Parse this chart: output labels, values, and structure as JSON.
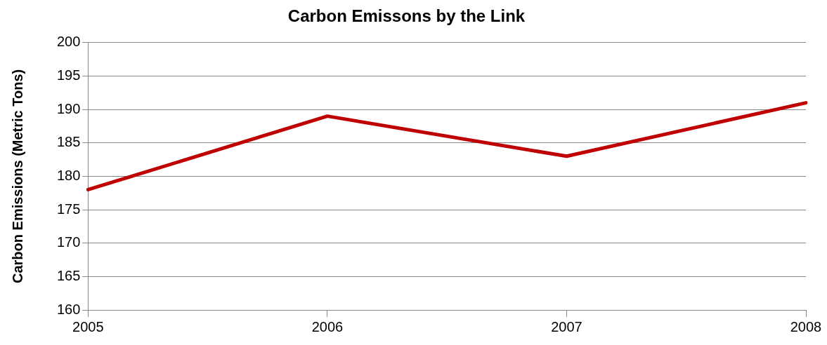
{
  "chart_data": {
    "type": "line",
    "title": "Carbon Emissons by the Link",
    "ylabel": "Carbon Emissions (Metric Tons)",
    "categories": [
      "2005",
      "2006",
      "2007",
      "2008"
    ],
    "series": [
      {
        "color": "#c00000",
        "values": [
          178,
          189,
          183,
          191
        ]
      }
    ],
    "ylim": [
      160,
      200
    ],
    "yticks": [
      160,
      165,
      170,
      175,
      180,
      185,
      190,
      195,
      200
    ],
    "grid": "y",
    "legend": false,
    "marker": "none",
    "line_style": "solid"
  }
}
